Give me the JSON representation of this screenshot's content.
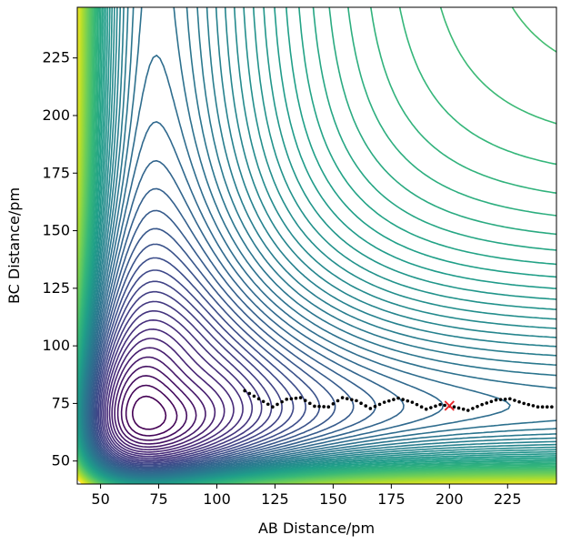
{
  "chart_data": {
    "type": "contour",
    "title": "",
    "xlabel": "AB Distance/pm",
    "ylabel": "BC Distance/pm",
    "xlim": [
      40,
      246
    ],
    "ylim": [
      40,
      247
    ],
    "xticks": [
      50,
      75,
      100,
      125,
      150,
      175,
      200,
      225
    ],
    "yticks": [
      50,
      75,
      100,
      125,
      150,
      175,
      200,
      225
    ],
    "xtick_labels": [
      "50",
      "75",
      "100",
      "125",
      "150",
      "175",
      "200",
      "225"
    ],
    "ytick_labels": [
      "50",
      "75",
      "100",
      "125",
      "150",
      "175",
      "200",
      "225"
    ],
    "colormap": "viridis",
    "grid": false,
    "series": [
      {
        "kind": "trajectory",
        "marker": "dot",
        "color": "#000000",
        "x": [
          112,
          118,
          124,
          130,
          136,
          142,
          148,
          154,
          160,
          166,
          172,
          178,
          184,
          190,
          196,
          202,
          208,
          214,
          220,
          226,
          232,
          238,
          244
        ],
        "y": [
          80.5,
          77,
          73.5,
          76.8,
          77.5,
          73.8,
          73.5,
          77.5,
          76.2,
          72.8,
          75.5,
          77.3,
          75.5,
          72.5,
          74.5,
          73.5,
          72,
          74.5,
          76.5,
          77,
          75,
          73.5,
          73.5
        ]
      },
      {
        "kind": "start-point",
        "marker": "x",
        "color": "#e8262a",
        "x": [
          200
        ],
        "y": [
          74
        ]
      }
    ]
  }
}
